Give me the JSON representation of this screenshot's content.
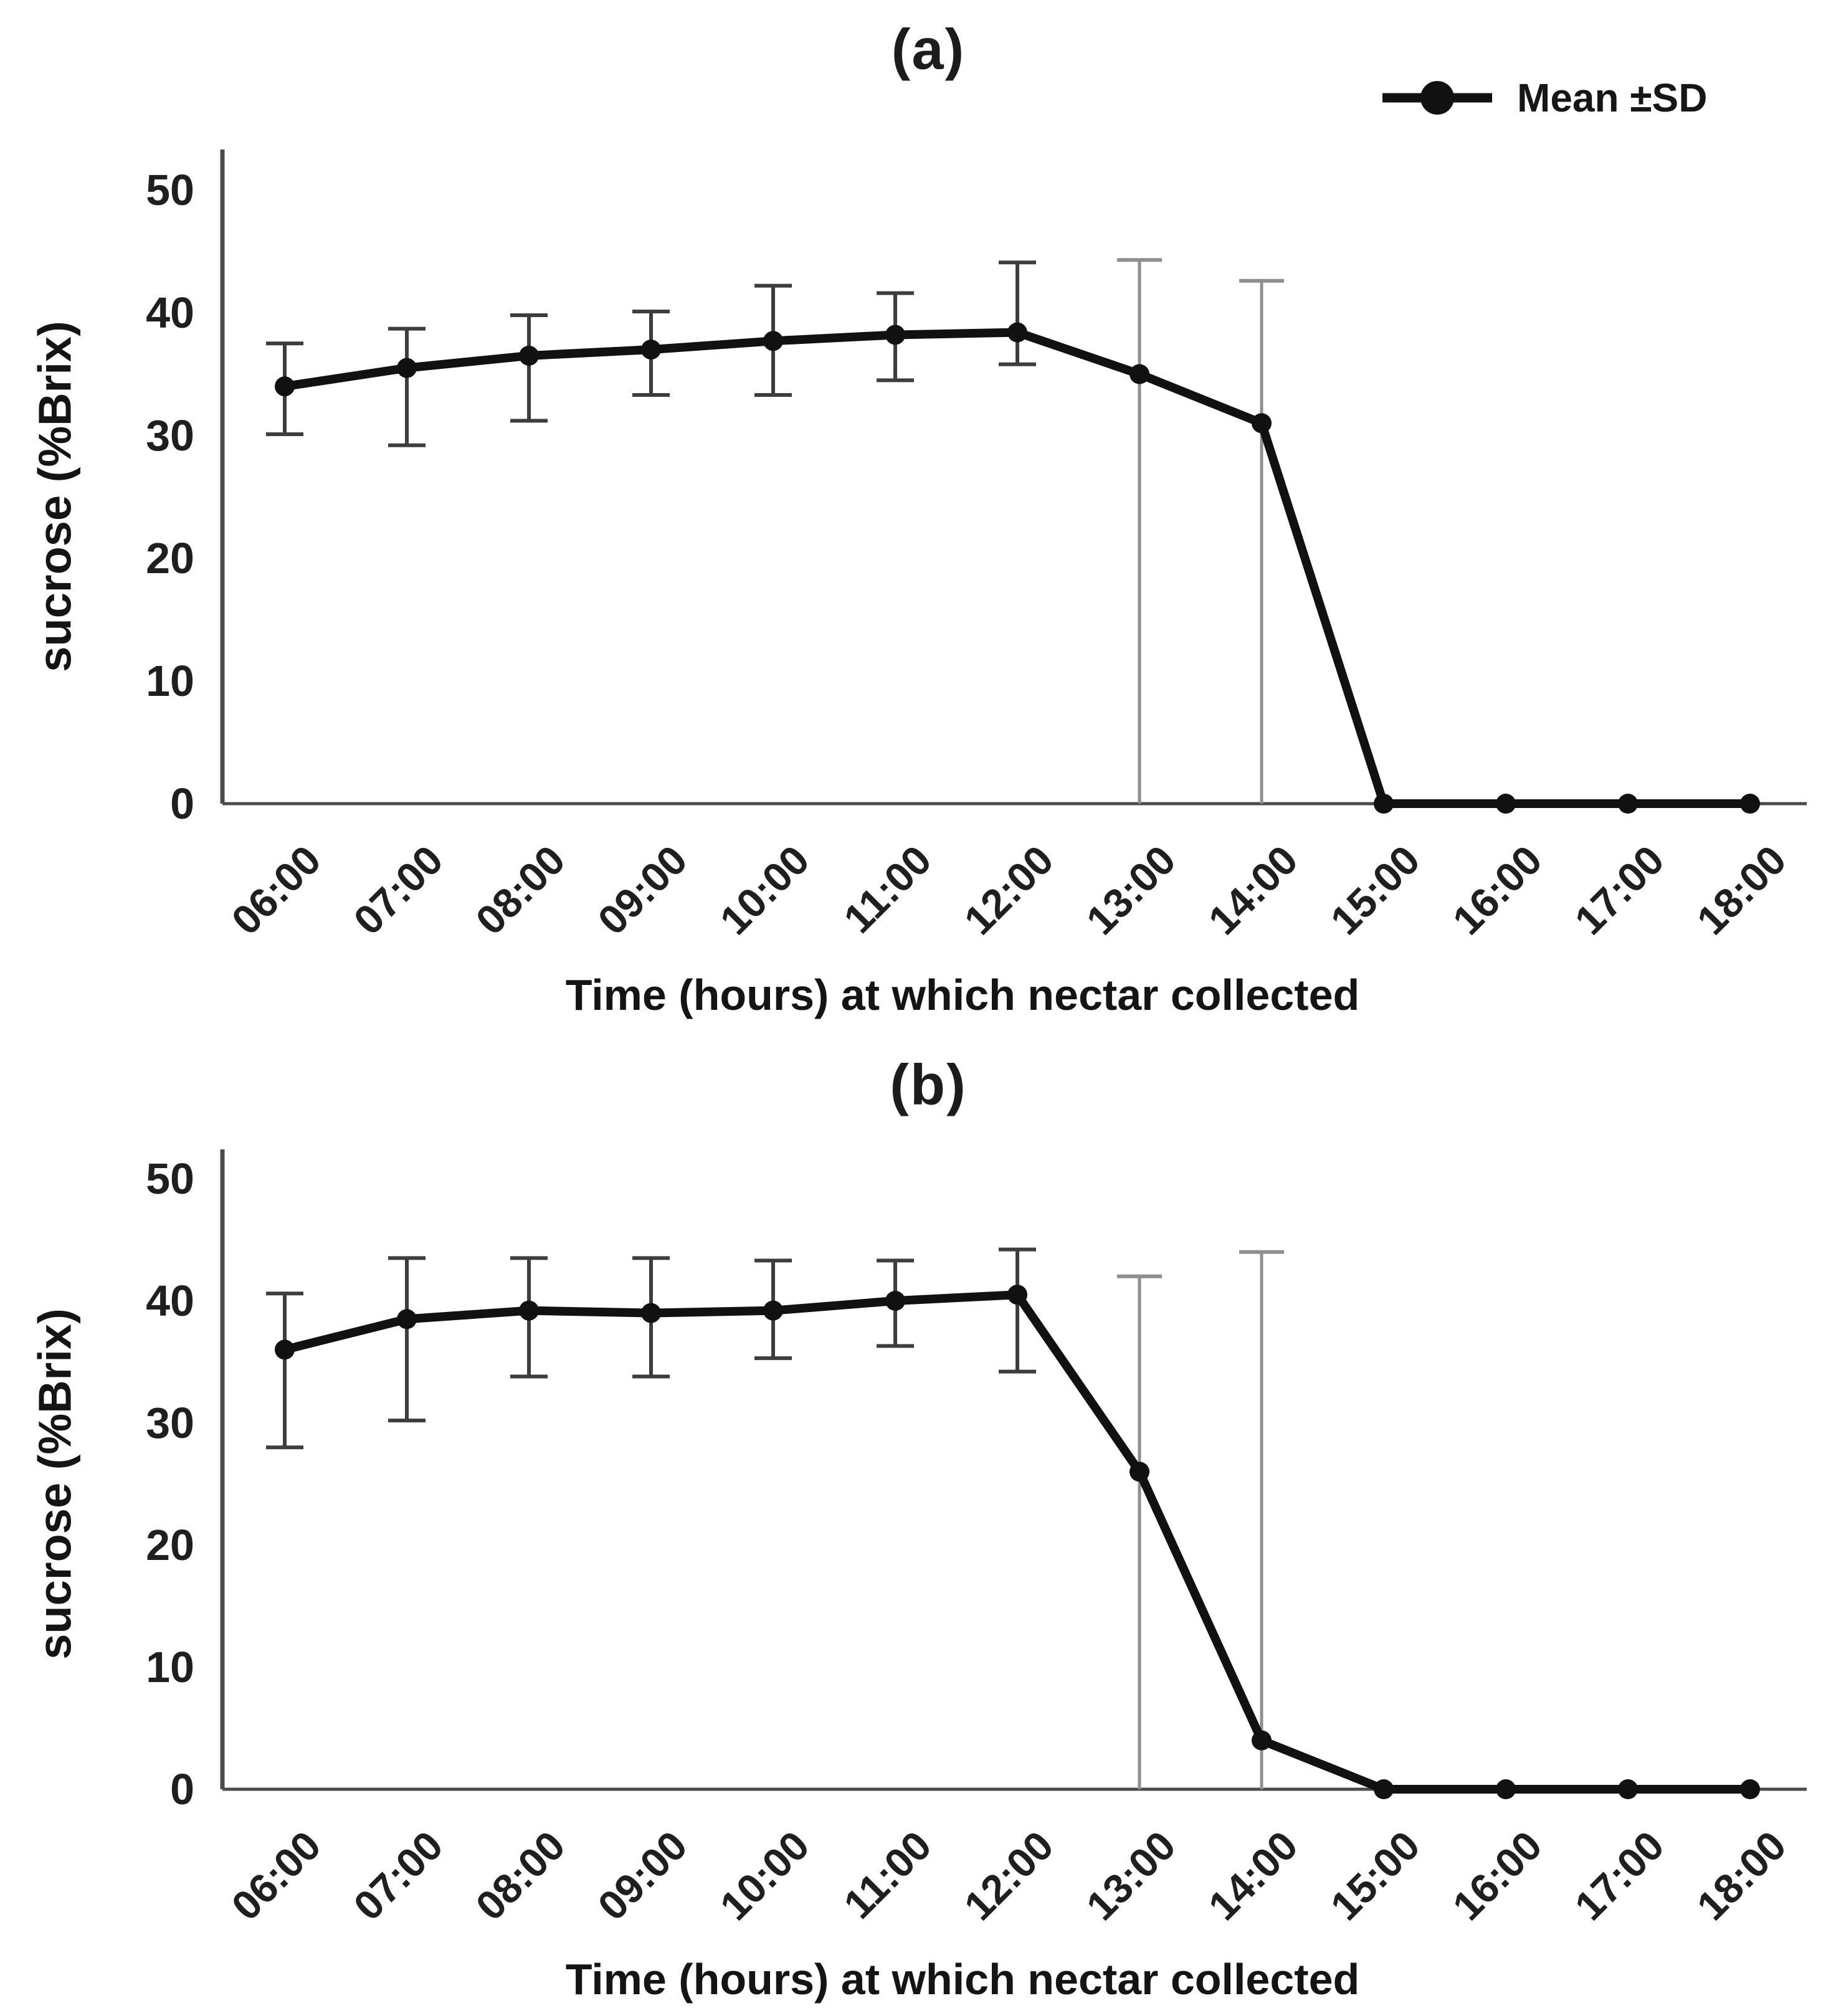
{
  "page": {
    "background": "#ffffff",
    "text_color": "#1a1a1a"
  },
  "legend": {
    "label": "Mean ±SD",
    "position": "top-right",
    "marker": "filled-circle-on-line",
    "color": "#111111"
  },
  "colors": {
    "line": "#111111",
    "marker": "#111111",
    "error_bar": "#3d3d3d",
    "full_height_error_bar": "#8f8f8f",
    "axis": "#4a4a4a",
    "tick_text": "#1f1f1f"
  },
  "chart_data": [
    {
      "type": "line",
      "panel_label": "(a)",
      "title": "(a)",
      "xlabel": "Time (hours) at which nectar collected",
      "ylabel": "sucrose (%Brix)",
      "ylim": [
        0,
        50
      ],
      "yticks": [
        0,
        10,
        20,
        30,
        40,
        50
      ],
      "grid": false,
      "legend_visible": true,
      "legend_position": "top-right",
      "categories": [
        "06:00",
        "07:00",
        "08:00",
        "09:00",
        "10:00",
        "11:00",
        "12:00",
        "13:00",
        "14:00",
        "15:00",
        "16:00",
        "17:00",
        "18:00"
      ],
      "series": [
        {
          "name": "Mean ±SD",
          "values": [
            34,
            35.5,
            36.5,
            37,
            37.7,
            38.2,
            38.4,
            35,
            31,
            0,
            0,
            0,
            0
          ],
          "sd_upper": [
            37.5,
            38.7,
            39.8,
            40.1,
            42.2,
            41.6,
            44.1,
            44.3,
            42.6,
            null,
            null,
            null,
            null
          ],
          "sd_lower": [
            30.1,
            29.2,
            31.2,
            33.3,
            33.3,
            34.5,
            35.8,
            0,
            0,
            null,
            null,
            null,
            null
          ],
          "full_height_error_bar_categories": [
            "13:00",
            "14:00"
          ]
        }
      ]
    },
    {
      "type": "line",
      "panel_label": "(b)",
      "title": "(b)",
      "xlabel": "Time (hours) at which nectar collected",
      "ylabel": "sucrose (%Brix)",
      "ylim": [
        0,
        50
      ],
      "yticks": [
        0,
        10,
        20,
        30,
        40,
        50
      ],
      "grid": false,
      "legend_visible": false,
      "categories": [
        "06:00",
        "07:00",
        "08:00",
        "09:00",
        "10:00",
        "11:00",
        "12:00",
        "13:00",
        "14:00",
        "15:00",
        "16:00",
        "17:00",
        "18:00"
      ],
      "series": [
        {
          "name": "Mean ±SD",
          "values": [
            36,
            38.5,
            39.2,
            39,
            39.2,
            40,
            40.5,
            26,
            4,
            0,
            0,
            0,
            0
          ],
          "sd_upper": [
            40.6,
            43.5,
            43.5,
            43.5,
            43.3,
            43.3,
            44.2,
            42,
            44,
            null,
            null,
            null,
            null
          ],
          "sd_lower": [
            28,
            30.2,
            33.8,
            33.8,
            35.3,
            36.3,
            34.2,
            0,
            0,
            null,
            null,
            null,
            null
          ],
          "full_height_error_bar_categories": [
            "13:00",
            "14:00"
          ]
        }
      ]
    }
  ]
}
